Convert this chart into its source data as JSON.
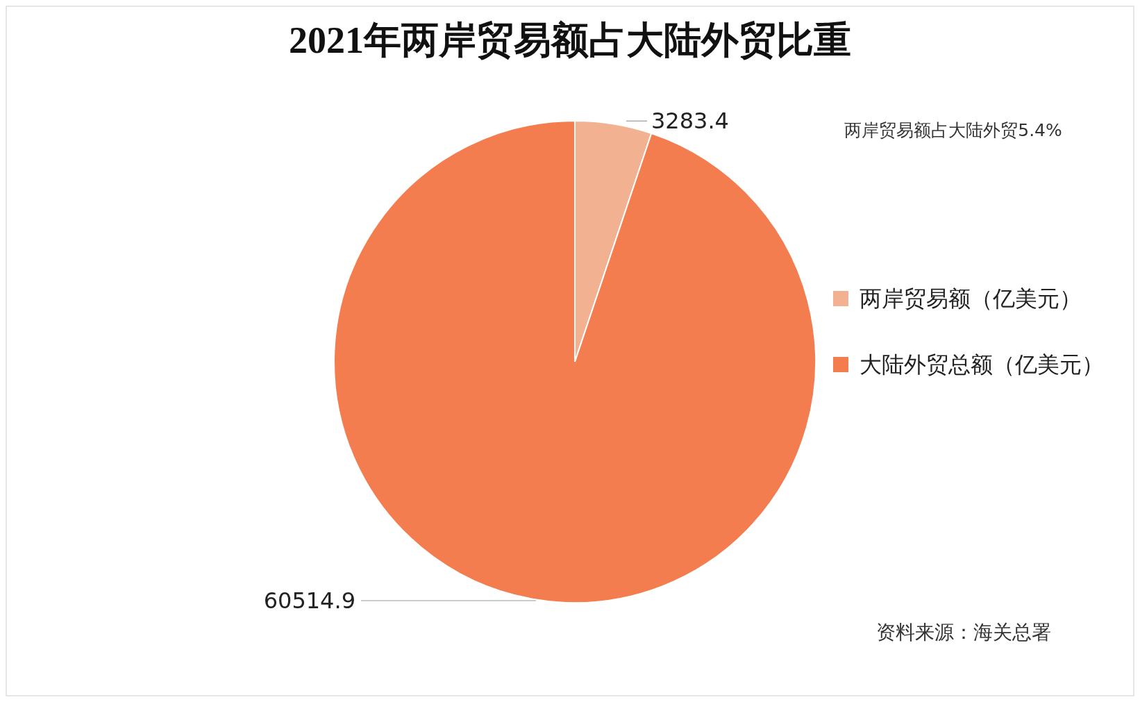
{
  "chart_data": {
    "type": "pie",
    "title": "2021年两岸贸易额占大陆外贸比重",
    "categories": [
      "两岸贸易额（亿美元）",
      "大陆外贸总额（亿美元）"
    ],
    "values": [
      3283.4,
      60514.9
    ],
    "colors": [
      "#f2b190",
      "#f47d4f"
    ],
    "data_labels": true,
    "legend": "right",
    "annotations": [
      "两岸贸易额占大陆外贸5.4%",
      "资料来源：海关总署"
    ]
  }
}
